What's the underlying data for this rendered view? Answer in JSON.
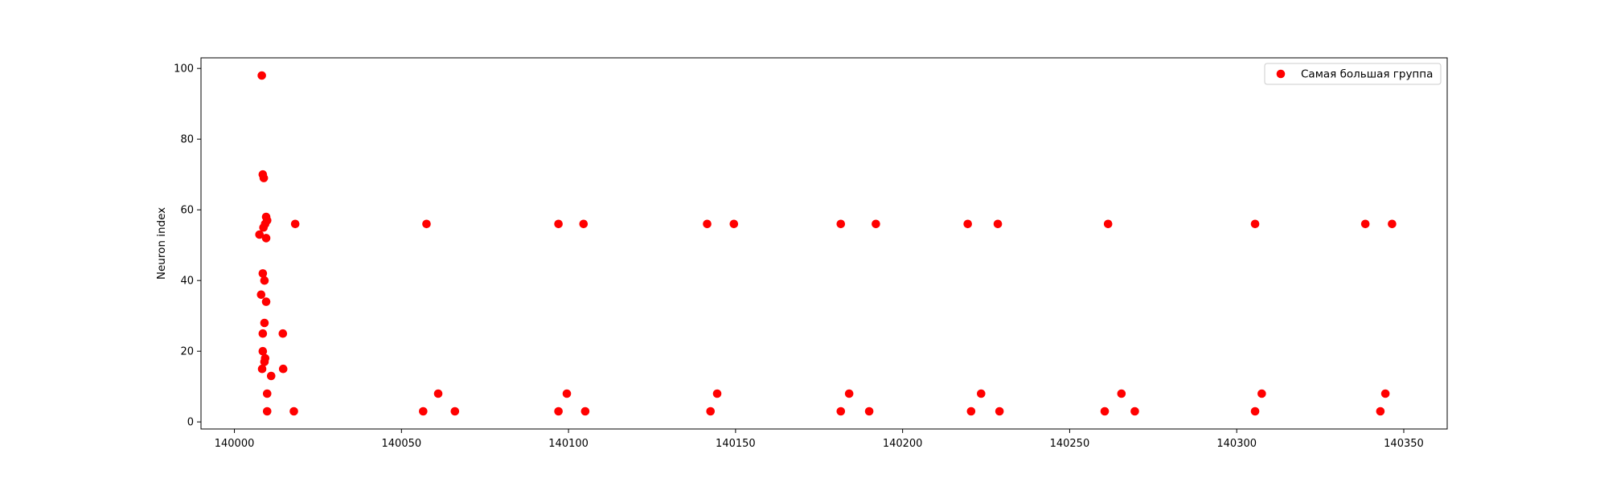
{
  "chart_data": {
    "type": "scatter",
    "title": "",
    "xlabel": "",
    "ylabel": "Neuron index",
    "xlim": [
      139990,
      140363
    ],
    "ylim": [
      -2,
      103
    ],
    "xticks": [
      140000,
      140050,
      140100,
      140150,
      140200,
      140250,
      140300,
      140350
    ],
    "yticks": [
      0,
      20,
      40,
      60,
      80,
      100
    ],
    "grid": false,
    "legend_position": "top-right",
    "series": [
      {
        "name": "Самая большая группа",
        "color": "#ff0000",
        "marker": "circle",
        "points": [
          [
            140008.2,
            98
          ],
          [
            140008.5,
            70
          ],
          [
            140008.8,
            69
          ],
          [
            140009.5,
            58
          ],
          [
            140009.8,
            57
          ],
          [
            140009.2,
            56
          ],
          [
            140018.2,
            56
          ],
          [
            140008.7,
            55
          ],
          [
            140007.5,
            53
          ],
          [
            140009.5,
            52
          ],
          [
            140008.5,
            42
          ],
          [
            140009.0,
            40
          ],
          [
            140008.0,
            36
          ],
          [
            140009.5,
            34
          ],
          [
            140009.0,
            28
          ],
          [
            140008.5,
            25
          ],
          [
            140014.5,
            25
          ],
          [
            140008.5,
            20
          ],
          [
            140009.2,
            18
          ],
          [
            140009.0,
            17
          ],
          [
            140008.3,
            15
          ],
          [
            140014.6,
            15
          ],
          [
            140011.0,
            13
          ],
          [
            140009.8,
            8
          ],
          [
            140009.8,
            3
          ],
          [
            140017.8,
            3
          ],
          [
            140057.5,
            56
          ],
          [
            140061.0,
            8
          ],
          [
            140056.5,
            3
          ],
          [
            140066.0,
            3
          ],
          [
            140097.0,
            56
          ],
          [
            140104.5,
            56
          ],
          [
            140099.5,
            8
          ],
          [
            140097.0,
            3
          ],
          [
            140105.0,
            3
          ],
          [
            140141.5,
            56
          ],
          [
            140149.5,
            56
          ],
          [
            140144.5,
            8
          ],
          [
            140142.5,
            3
          ],
          [
            140181.5,
            56
          ],
          [
            140192.0,
            56
          ],
          [
            140184.0,
            8
          ],
          [
            140181.5,
            3
          ],
          [
            140190.0,
            3
          ],
          [
            140219.5,
            56
          ],
          [
            140228.5,
            56
          ],
          [
            140223.5,
            8
          ],
          [
            140220.5,
            3
          ],
          [
            140229.0,
            3
          ],
          [
            140261.5,
            56
          ],
          [
            140265.5,
            8
          ],
          [
            140260.5,
            3
          ],
          [
            140269.5,
            3
          ],
          [
            140305.5,
            56
          ],
          [
            140307.5,
            8
          ],
          [
            140305.5,
            3
          ],
          [
            140338.5,
            56
          ],
          [
            140346.5,
            56
          ],
          [
            140344.5,
            8
          ],
          [
            140343.0,
            3
          ]
        ]
      }
    ]
  }
}
